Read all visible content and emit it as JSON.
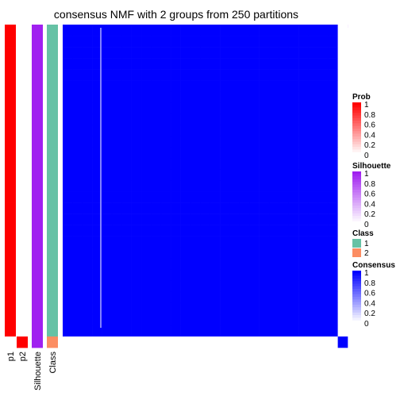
{
  "chart_data": {
    "type": "heatmap",
    "title": "consensus NMF with 2 groups from 250 partitions",
    "n_samples": 29,
    "row_annotations": [
      {
        "name": "p1",
        "values": [
          1,
          1,
          1,
          1,
          1,
          1,
          1,
          1,
          1,
          1,
          1,
          1,
          1,
          1,
          1,
          1,
          1,
          1,
          1,
          1,
          1,
          1,
          1,
          1,
          1,
          1,
          1,
          1,
          0
        ]
      },
      {
        "name": "p2",
        "values": [
          0,
          0,
          0,
          0,
          0,
          0,
          0,
          0,
          0,
          0,
          0,
          0,
          0,
          0,
          0,
          0,
          0,
          0,
          0,
          0,
          0,
          0,
          0,
          0,
          0,
          0,
          0,
          0,
          1
        ]
      },
      {
        "name": "Silhouette",
        "values": [
          1,
          1,
          1,
          1,
          1,
          1,
          1,
          1,
          1,
          1,
          1,
          1,
          1,
          1,
          1,
          1,
          1,
          1,
          1,
          1,
          1,
          1,
          1,
          1,
          1,
          1,
          1,
          1,
          1
        ]
      },
      {
        "name": "Class",
        "values": [
          1,
          1,
          1,
          1,
          1,
          1,
          1,
          1,
          1,
          1,
          1,
          1,
          1,
          1,
          1,
          1,
          1,
          1,
          1,
          1,
          1,
          1,
          1,
          1,
          1,
          1,
          1,
          1,
          2
        ]
      }
    ],
    "column_annotation": {
      "name": "Silhouette",
      "values": [
        1,
        1,
        1,
        1,
        1,
        1,
        1,
        1,
        1,
        1,
        1,
        1,
        1,
        1,
        1,
        1,
        1,
        1,
        1,
        1,
        1,
        1,
        1,
        1,
        1,
        1,
        1,
        1,
        1
      ]
    },
    "matrix_rule": "consensus = 1 when both samples share a class, else 0",
    "legends": [
      {
        "title": "Prob",
        "ticks": [
          "1",
          "0.8",
          "0.6",
          "0.4",
          "0.2",
          "0"
        ],
        "low": "#ffffff",
        "high": "#ff0000"
      },
      {
        "title": "Silhouette",
        "ticks": [
          "1",
          "0.8",
          "0.6",
          "0.4",
          "0.2",
          "0"
        ],
        "low": "#ffffff",
        "high": "#a020f0"
      },
      {
        "title": "Class",
        "items": [
          {
            "label": "1",
            "color": "#66c2a5"
          },
          {
            "label": "2",
            "color": "#fc8d62"
          }
        ]
      },
      {
        "title": "Consensus",
        "ticks": [
          "1",
          "0.8",
          "0.6",
          "0.4",
          "0.2",
          "0"
        ],
        "low": "#ffffff",
        "high": "#0000ff"
      }
    ]
  }
}
